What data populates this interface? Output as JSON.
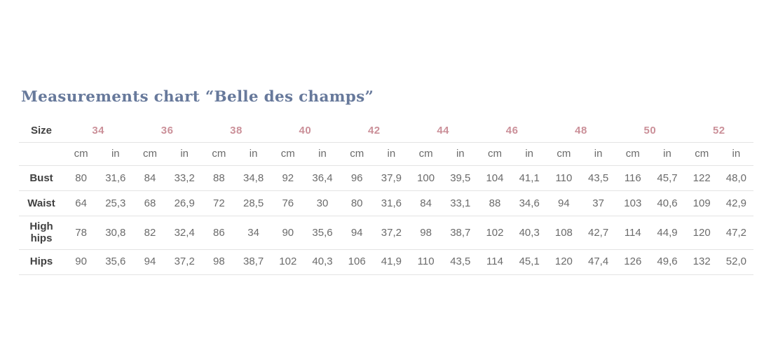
{
  "title": "Measurements chart “Belle des champs”",
  "table": {
    "size_label": "Size",
    "sizes": [
      "34",
      "36",
      "38",
      "40",
      "42",
      "44",
      "46",
      "48",
      "50",
      "52"
    ],
    "unit_cm": "cm",
    "unit_in": "in",
    "rows": [
      {
        "label": "Bust",
        "values": [
          "80",
          "31,6",
          "84",
          "33,2",
          "88",
          "34,8",
          "92",
          "36,4",
          "96",
          "37,9",
          "100",
          "39,5",
          "104",
          "41,1",
          "110",
          "43,5",
          "116",
          "45,7",
          "122",
          "48,0"
        ]
      },
      {
        "label": "Waist",
        "values": [
          "64",
          "25,3",
          "68",
          "26,9",
          "72",
          "28,5",
          "76",
          "30",
          "80",
          "31,6",
          "84",
          "33,1",
          "88",
          "34,6",
          "94",
          "37",
          "103",
          "40,6",
          "109",
          "42,9"
        ]
      },
      {
        "label": "High hips",
        "values": [
          "78",
          "30,8",
          "82",
          "32,4",
          "86",
          "34",
          "90",
          "35,6",
          "94",
          "37,2",
          "98",
          "38,7",
          "102",
          "40,3",
          "108",
          "42,7",
          "114",
          "44,9",
          "120",
          "47,2"
        ]
      },
      {
        "label": "Hips",
        "values": [
          "90",
          "35,6",
          "94",
          "37,2",
          "98",
          "38,7",
          "102",
          "40,3",
          "106",
          "41,9",
          "110",
          "43,5",
          "114",
          "45,1",
          "120",
          "47,4",
          "126",
          "49,6",
          "132",
          "52,0"
        ]
      }
    ]
  },
  "colors": {
    "title": "#67799b",
    "size_accent": "#cb9099",
    "label_text": "#414141",
    "value_text": "#6b6b6b",
    "divider": "#e3e3e3",
    "background": "#ffffff"
  },
  "chart_data": {
    "type": "table",
    "title": "Measurements chart “Belle des champs”",
    "sizes": [
      34,
      36,
      38,
      40,
      42,
      44,
      46,
      48,
      50,
      52
    ],
    "units": [
      "cm",
      "in"
    ],
    "rows": [
      {
        "label": "Bust",
        "cm": [
          80,
          84,
          88,
          92,
          96,
          100,
          104,
          110,
          116,
          122
        ],
        "in": [
          31.6,
          33.2,
          34.8,
          36.4,
          37.9,
          39.5,
          41.1,
          43.5,
          45.7,
          48.0
        ]
      },
      {
        "label": "Waist",
        "cm": [
          64,
          68,
          72,
          76,
          80,
          84,
          88,
          94,
          103,
          109
        ],
        "in": [
          25.3,
          26.9,
          28.5,
          30,
          31.6,
          33.1,
          34.6,
          37,
          40.6,
          42.9
        ]
      },
      {
        "label": "High hips",
        "cm": [
          78,
          82,
          86,
          90,
          94,
          98,
          102,
          108,
          114,
          120
        ],
        "in": [
          30.8,
          32.4,
          34,
          35.6,
          37.2,
          38.7,
          40.3,
          42.7,
          44.9,
          47.2
        ]
      },
      {
        "label": "Hips",
        "cm": [
          90,
          94,
          98,
          102,
          106,
          110,
          114,
          120,
          126,
          132
        ],
        "in": [
          35.6,
          37.2,
          38.7,
          40.3,
          41.9,
          43.5,
          45.1,
          47.4,
          49.6,
          52.0
        ]
      }
    ]
  }
}
